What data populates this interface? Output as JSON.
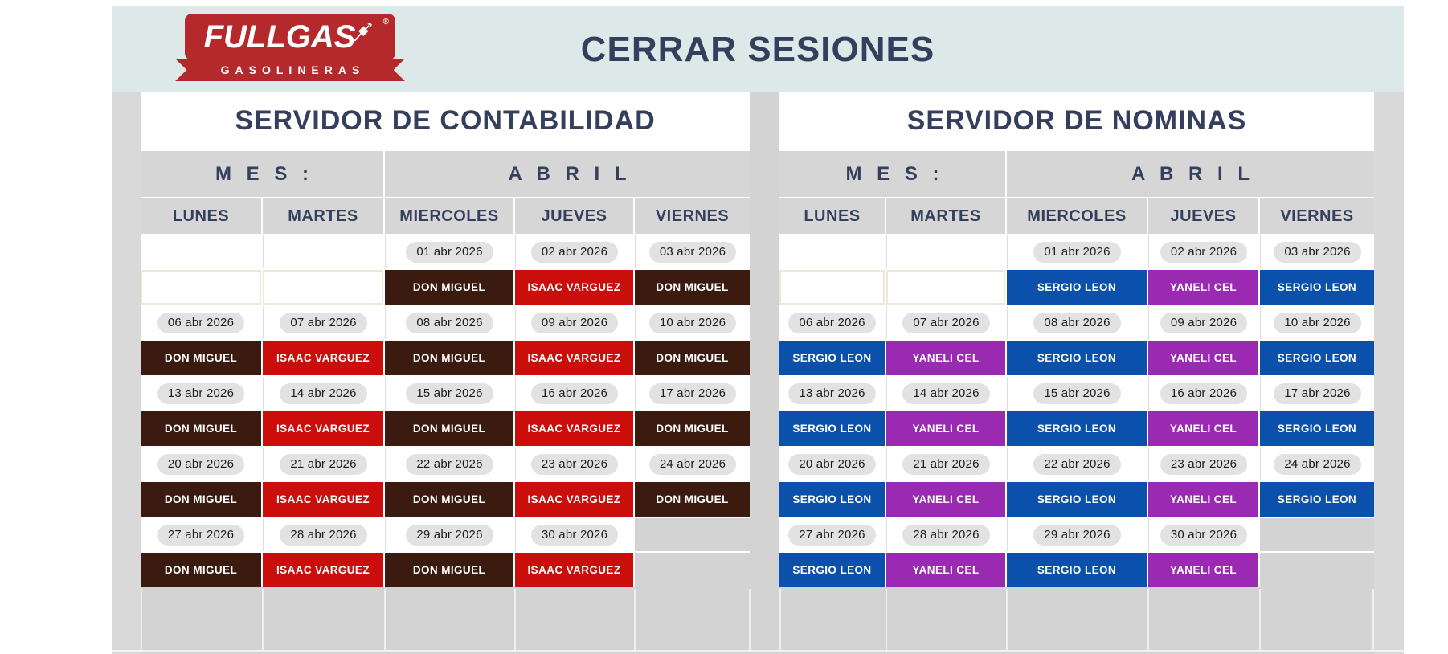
{
  "header": {
    "title": "CERRAR SESIONES",
    "logo": {
      "brand": "FULLGAS",
      "subtitle": "GASOLINERAS",
      "registered": "®"
    }
  },
  "colors": {
    "header_band": "#dde9e9",
    "sheet_background": "#d3d3d3",
    "row_header_gray": "#d6d6d6",
    "navy_text": "#333f5c",
    "logo_red": "#b5292c",
    "date_pill": "#e2e2e2",
    "don_miguel": "#3b1b10",
    "isaac_varguez": "#cb0d0b",
    "sergio_leon": "#0b51ac",
    "yaneli_cel": "#9b2ab2"
  },
  "people": [
    {
      "name": "DON MIGUEL",
      "color": "#3b1b10"
    },
    {
      "name": "ISAAC VARGUEZ",
      "color": "#cb0d0b"
    },
    {
      "name": "SERGIO LEON",
      "color": "#0b51ac"
    },
    {
      "name": "YANELI CEL",
      "color": "#9b2ab2"
    }
  ],
  "servers": [
    {
      "title": "SERVIDOR DE CONTABILIDAD",
      "mes_label": "M E S :",
      "month": "A B R I L",
      "days": [
        "LUNES",
        "MARTES",
        "MIERCOLES",
        "JUEVES",
        "VIERNES"
      ],
      "weeks": [
        {
          "dates": [
            "",
            "",
            "01 abr 2026",
            "02 abr 2026",
            "03 abr 2026"
          ],
          "names": [
            "",
            "",
            "DON MIGUEL",
            "ISAAC VARGUEZ",
            "DON MIGUEL"
          ]
        },
        {
          "dates": [
            "06 abr 2026",
            "07 abr 2026",
            "08 abr 2026",
            "09 abr 2026",
            "10 abr 2026"
          ],
          "names": [
            "DON MIGUEL",
            "ISAAC VARGUEZ",
            "DON MIGUEL",
            "ISAAC VARGUEZ",
            "DON MIGUEL"
          ]
        },
        {
          "dates": [
            "13 abr 2026",
            "14 abr 2026",
            "15 abr 2026",
            "16 abr 2026",
            "17 abr 2026"
          ],
          "names": [
            "DON MIGUEL",
            "ISAAC VARGUEZ",
            "DON MIGUEL",
            "ISAAC VARGUEZ",
            "DON MIGUEL"
          ]
        },
        {
          "dates": [
            "20 abr 2026",
            "21 abr 2026",
            "22 abr 2026",
            "23 abr 2026",
            "24 abr 2026"
          ],
          "names": [
            "DON MIGUEL",
            "ISAAC VARGUEZ",
            "DON MIGUEL",
            "ISAAC VARGUEZ",
            "DON MIGUEL"
          ]
        },
        {
          "dates": [
            "27 abr 2026",
            "28 abr 2026",
            "29 abr 2026",
            "30 abr 2026",
            null
          ],
          "names": [
            "DON MIGUEL",
            "ISAAC VARGUEZ",
            "DON MIGUEL",
            "ISAAC VARGUEZ",
            null
          ]
        }
      ]
    },
    {
      "title": "SERVIDOR DE NOMINAS",
      "mes_label": "M E S :",
      "month": "A B R I L",
      "days": [
        "LUNES",
        "MARTES",
        "MIERCOLES",
        "JUEVES",
        "VIERNES"
      ],
      "weeks": [
        {
          "dates": [
            "",
            "",
            "01 abr 2026",
            "02 abr 2026",
            "03 abr 2026"
          ],
          "names": [
            "",
            "",
            "SERGIO LEON",
            "YANELI CEL",
            "SERGIO LEON"
          ]
        },
        {
          "dates": [
            "06 abr 2026",
            "07 abr 2026",
            "08 abr 2026",
            "09 abr 2026",
            "10 abr 2026"
          ],
          "names": [
            "SERGIO LEON",
            "YANELI CEL",
            "SERGIO LEON",
            "YANELI CEL",
            "SERGIO LEON"
          ]
        },
        {
          "dates": [
            "13 abr 2026",
            "14 abr 2026",
            "15 abr 2026",
            "16 abr 2026",
            "17 abr 2026"
          ],
          "names": [
            "SERGIO LEON",
            "YANELI CEL",
            "SERGIO LEON",
            "YANELI CEL",
            "SERGIO LEON"
          ]
        },
        {
          "dates": [
            "20 abr 2026",
            "21 abr 2026",
            "22 abr 2026",
            "23 abr 2026",
            "24 abr 2026"
          ],
          "names": [
            "SERGIO LEON",
            "YANELI CEL",
            "SERGIO LEON",
            "YANELI CEL",
            "SERGIO LEON"
          ]
        },
        {
          "dates": [
            "27 abr 2026",
            "28 abr 2026",
            "29 abr 2026",
            "30 abr 2026",
            null
          ],
          "names": [
            "SERGIO LEON",
            "YANELI CEL",
            "SERGIO LEON",
            "YANELI CEL",
            null
          ]
        }
      ]
    }
  ]
}
